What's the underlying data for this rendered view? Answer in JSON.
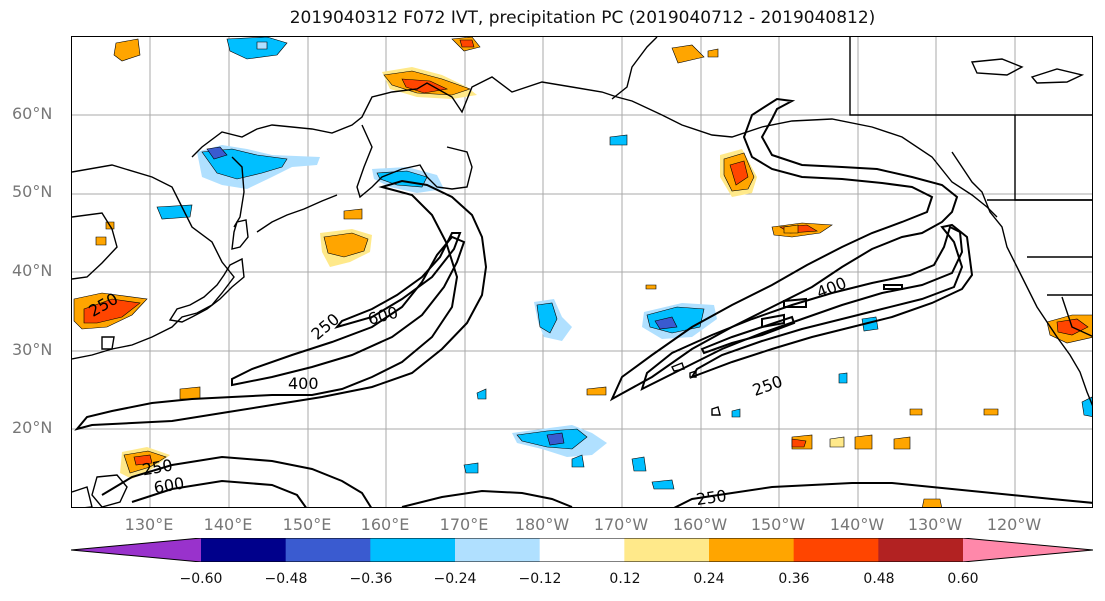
{
  "figure": {
    "title": "2019040312 F072 IVT, precipitation PC (2019040712 - 2019040812)"
  },
  "map": {
    "lat_labels": [
      "60°N",
      "50°N",
      "40°N",
      "30°N",
      "20°N"
    ],
    "lon_labels": [
      "130°E",
      "140°E",
      "150°E",
      "160°E",
      "170°E",
      "180°W",
      "170°W",
      "160°W",
      "150°W",
      "140°W",
      "130°W",
      "120°W"
    ],
    "ivt_contour_labels": [
      "250",
      "600",
      "400",
      "400",
      "250",
      "250",
      "600",
      "250",
      "250"
    ],
    "contour_levels": [
      250,
      400,
      600
    ]
  },
  "colorbar": {
    "tick_labels": [
      "−0.60",
      "−0.48",
      "−0.36",
      "−0.24",
      "−0.12",
      "0.12",
      "0.24",
      "0.36",
      "0.48",
      "0.60"
    ],
    "colors": [
      "#9932CC",
      "#00008B",
      "#3A5BD0",
      "#00BFFF",
      "#B0E0FF",
      "#FFFFFF",
      "#FFE98A",
      "#FFA500",
      "#FF4500",
      "#B22222",
      "#FF88AA"
    ]
  }
}
